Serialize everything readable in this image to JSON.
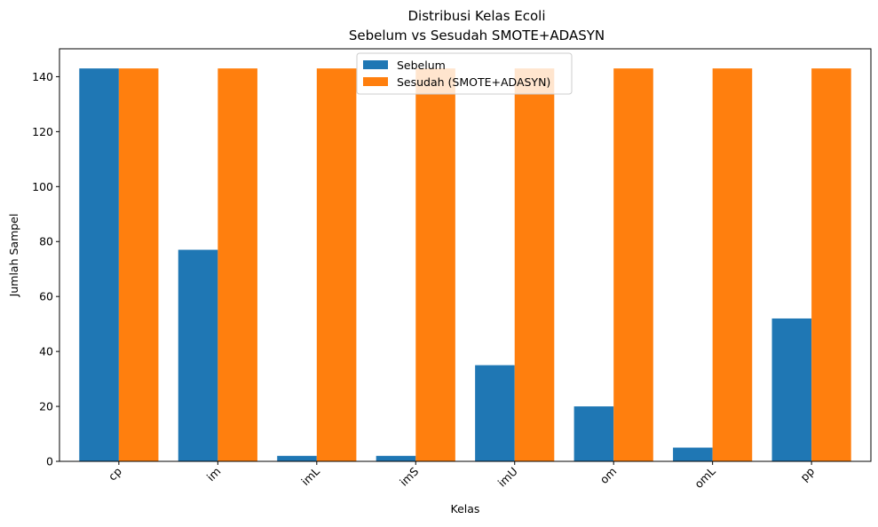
{
  "chart_data": {
    "type": "bar",
    "title": "Distribusi Kelas Ecoli",
    "subtitle": "Sebelum vs Sesudah SMOTE+ADASYN",
    "xlabel": "Kelas",
    "ylabel": "Jumlah Sampel",
    "categories": [
      "cp",
      "im",
      "imL",
      "imS",
      "imU",
      "om",
      "omL",
      "pp"
    ],
    "series": [
      {
        "name": "Sebelum",
        "color": "#1f77b4",
        "values": [
          143,
          77,
          2,
          2,
          35,
          20,
          5,
          52
        ]
      },
      {
        "name": "Sesudah (SMOTE+ADASYN)",
        "color": "#ff7f0e",
        "values": [
          143,
          143,
          143,
          143,
          143,
          143,
          143,
          143
        ]
      }
    ],
    "ylim": [
      0,
      150.15
    ],
    "yticks": [
      0,
      20,
      40,
      60,
      80,
      100,
      120,
      140
    ],
    "grid": false,
    "legend_position": "top-center",
    "xtick_rotation": 45
  }
}
